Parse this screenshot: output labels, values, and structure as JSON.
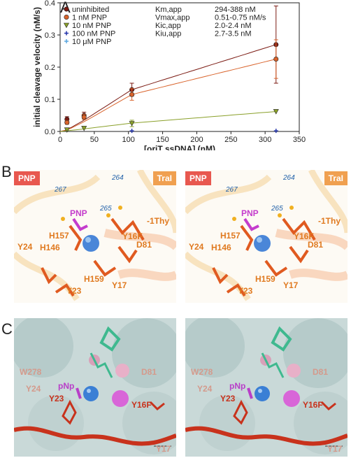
{
  "panels": {
    "a": "A",
    "b": "B",
    "c": "C"
  },
  "chart_data": {
    "type": "scatter",
    "xlabel": "[oriT ssDNA] (nM)",
    "ylabel": "initial cleavage velocity (nM/s)",
    "xlim": [
      0,
      350
    ],
    "ylim": [
      0,
      0.4
    ],
    "xticks": [
      0,
      50,
      100,
      150,
      200,
      250,
      300,
      350
    ],
    "yticks": [
      0.0,
      0.1,
      0.2,
      0.3,
      0.4
    ],
    "legend_location": "top-left",
    "series": [
      {
        "name": "uninhibited",
        "color": "#7b1a12",
        "marker": "circle",
        "x": [
          10,
          35,
          105,
          316
        ],
        "y": [
          0.038,
          0.05,
          0.13,
          0.27
        ],
        "err": [
          0.008,
          0.01,
          0.02,
          0.12
        ],
        "fit": [
          0,
          0.005,
          0.035,
          0.13,
          0.27
        ]
      },
      {
        "name": "1 nM PNP",
        "color": "#d9632b",
        "marker": "circle",
        "x": [
          10,
          35,
          105,
          316
        ],
        "y": [
          0.028,
          0.045,
          0.115,
          0.225
        ],
        "err": [
          0.006,
          0.008,
          0.018,
          0.06
        ],
        "fit": [
          0,
          0.004,
          0.03,
          0.115,
          0.225
        ]
      },
      {
        "name": "10 nM PNP",
        "color": "#8aa02a",
        "marker": "triangle-down",
        "x": [
          10,
          35,
          105,
          316
        ],
        "y": [
          0.005,
          0.01,
          0.025,
          0.062
        ],
        "err": [
          0,
          0,
          0.01,
          0
        ],
        "fit": [
          0,
          0.002,
          0.008,
          0.026,
          0.062
        ]
      },
      {
        "name": "100 nM PNP",
        "color": "#2233aa",
        "marker": "plus",
        "x": [
          105,
          316
        ],
        "y": [
          0.002,
          0.002
        ],
        "err": [
          0,
          0
        ],
        "fit": []
      },
      {
        "name": "10 μM PNP",
        "color": "#5aa7e0",
        "marker": "plus",
        "x": [],
        "y": [],
        "err": [],
        "fit": []
      }
    ],
    "kinetics": [
      {
        "name": "Km,app",
        "value": "294-388 nM"
      },
      {
        "name": "Vmax,app",
        "value": "0.51-0.75 nM/s"
      },
      {
        "name": "Kic,app",
        "value": "2.0-2.4 nM"
      },
      {
        "name": "Kiu,app",
        "value": "2.7-3.5 nM"
      }
    ]
  },
  "panel_b": {
    "tag_left": "PNP",
    "tag_right": "TraI",
    "tag_left_color": "#e8584f",
    "tag_right_color": "#f0a050",
    "labels": {
      "n264": "264",
      "n265": "265",
      "n267": "267",
      "pnp": "PNP",
      "thy": "-1Thy",
      "h157": "H157",
      "h146": "H146",
      "y16f": "Y16F",
      "d81": "D81",
      "y24": "Y24",
      "h159": "H159",
      "y17": "Y17",
      "y23": "Y23"
    }
  },
  "panel_c": {
    "labels": {
      "w278": "W278",
      "d81": "D81",
      "y24": "Y24",
      "pnp": "pNp",
      "y23": "Y23",
      "y16f": "Y16F",
      "y17": "Y17"
    }
  }
}
